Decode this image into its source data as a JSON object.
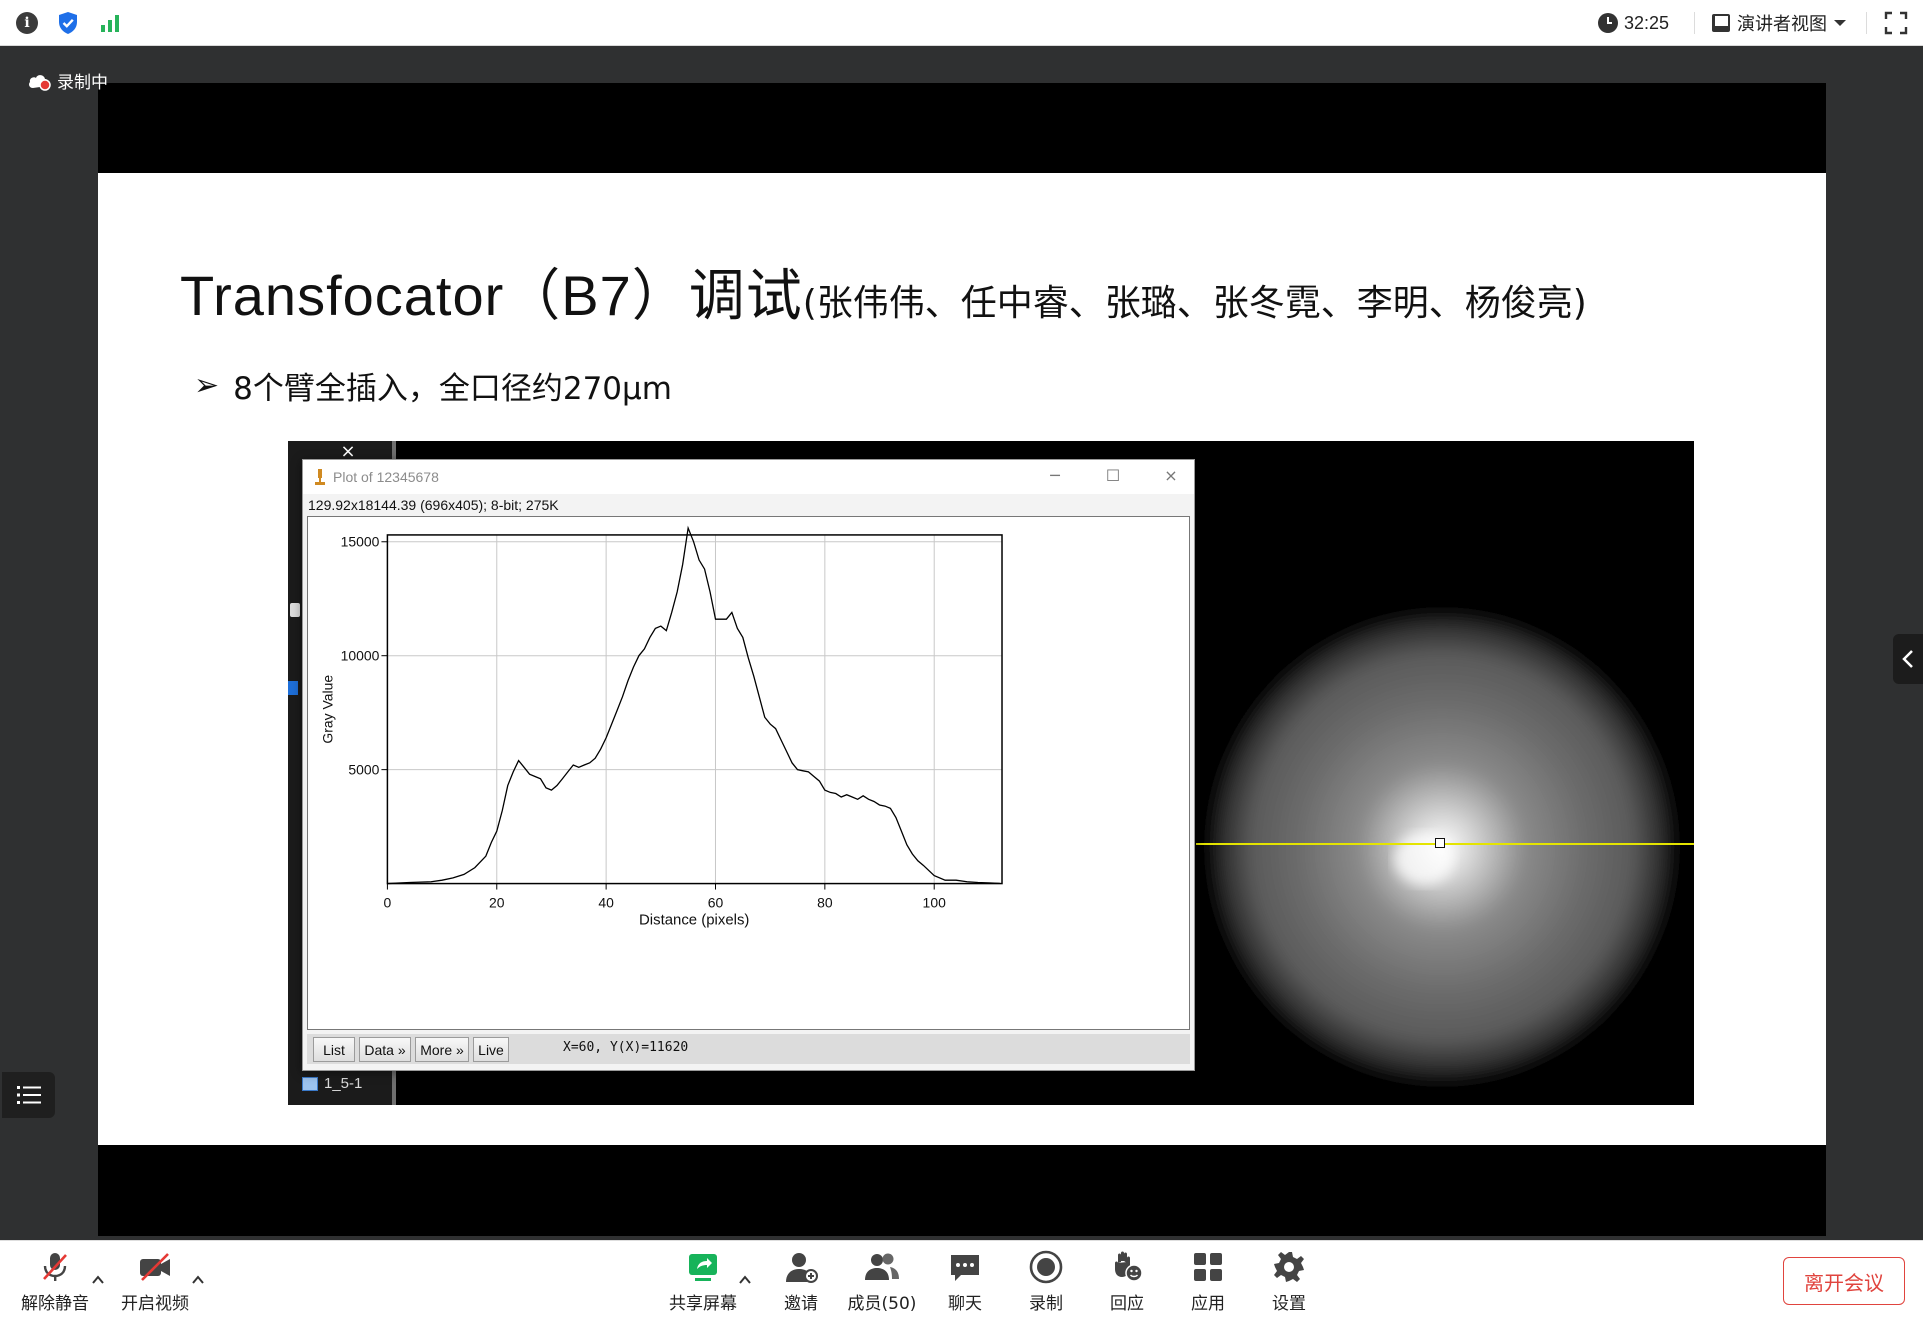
{
  "topbar": {
    "timer": "32:25",
    "view_mode": "演讲者视图"
  },
  "recording": {
    "label": "录制中"
  },
  "slide": {
    "title_main": "Transfocator（B7）调试",
    "title_sub": "(张伟伟、任中睿、张璐、张冬霓、李明、杨俊亮)",
    "bullet": "8个臂全插入，全口径约270μm"
  },
  "imagej": {
    "window_title": "Plot of 12345678",
    "info_line": "129.92x18144.39  (696x405); 8-bit; 275K",
    "buttons": [
      "List",
      "Data »",
      "More »",
      "Live"
    ],
    "coords": "X=60,  Y(X)=11620",
    "image_tab": "1_5-1",
    "close_glyph": "×"
  },
  "chart_data": {
    "type": "line",
    "title": "",
    "xlabel": "Distance (pixels)",
    "ylabel": "Gray Value",
    "xlim": [
      0,
      112.4
    ],
    "ylim": [
      0,
      15300
    ],
    "xticks": [
      0,
      20,
      40,
      60,
      80,
      100
    ],
    "yticks": [
      5000,
      10000,
      15000
    ],
    "grid": true,
    "series": [
      {
        "x": [
          0,
          4,
          8,
          10,
          12,
          14,
          16,
          18,
          19,
          20,
          21,
          22,
          23,
          24,
          25,
          26,
          27,
          28,
          29,
          30,
          31,
          32,
          33,
          34,
          35,
          36,
          37,
          38,
          39,
          40,
          41,
          42,
          43,
          44,
          45,
          46,
          47,
          48,
          49,
          50,
          51,
          52,
          53,
          54,
          55,
          56,
          57,
          58,
          59,
          60,
          61,
          62,
          63,
          64,
          65,
          66,
          67,
          68,
          69,
          70,
          71,
          72,
          73,
          74,
          75,
          76,
          77,
          78,
          79,
          80,
          81,
          82,
          83,
          84,
          85,
          86,
          87,
          88,
          89,
          90,
          91,
          92,
          93,
          94,
          95,
          96,
          97,
          98,
          100,
          102,
          104,
          106,
          108,
          110,
          112
        ],
        "y": [
          0,
          50,
          80,
          150,
          250,
          400,
          700,
          1200,
          1800,
          2300,
          3200,
          4300,
          4900,
          5400,
          5100,
          4800,
          4700,
          4600,
          4200,
          4100,
          4300,
          4600,
          4900,
          5200,
          5100,
          5200,
          5300,
          5500,
          5900,
          6400,
          7000,
          7600,
          8200,
          8900,
          9500,
          10000,
          10300,
          10800,
          11200,
          11300,
          11100,
          11900,
          12800,
          14000,
          15600,
          15000,
          14200,
          13800,
          12800,
          11600,
          11600,
          11600,
          11900,
          11200,
          10800,
          9900,
          9100,
          8200,
          7300,
          7000,
          6800,
          6300,
          5800,
          5300,
          5000,
          4950,
          4900,
          4700,
          4500,
          4100,
          4000,
          3950,
          3800,
          3900,
          3800,
          3700,
          3850,
          3700,
          3600,
          3450,
          3400,
          3300,
          2900,
          2300,
          1700,
          1300,
          1000,
          800,
          350,
          150,
          150,
          80,
          50,
          30,
          10
        ]
      }
    ]
  },
  "side": {},
  "bottombar": {
    "unmute": "解除静音",
    "video": "开启视频",
    "share": "共享屏幕",
    "invite": "邀请",
    "members": "成员(50)",
    "chat": "聊天",
    "record": "录制",
    "react": "回应",
    "apps": "应用",
    "settings": "设置",
    "leave": "离开会议"
  }
}
